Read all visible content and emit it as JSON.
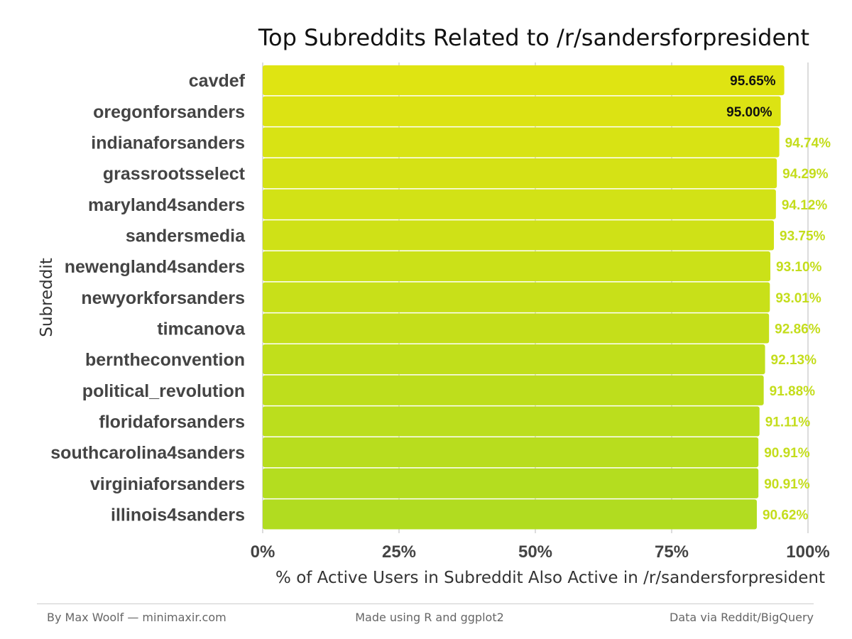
{
  "chart_data": {
    "type": "bar",
    "orientation": "horizontal",
    "title": "Top Subreddits Related to /r/sandersforpresident",
    "xlabel": "% of Active Users in Subreddit Also Active in /r/sandersforpresident",
    "ylabel": "Subreddit",
    "xlim": [
      0,
      100
    ],
    "x_ticks": [
      "0%",
      "25%",
      "50%",
      "75%",
      "100%"
    ],
    "grid": true,
    "categories": [
      "cavdef",
      "oregonforsanders",
      "indianaforsanders",
      "grassrootsselect",
      "maryland4sanders",
      "sandersmedia",
      "newengland4sanders",
      "newyorkforsanders",
      "timcanova",
      "berntheconvention",
      "political_revolution",
      "floridaforsanders",
      "southcarolina4sanders",
      "virginiaforsanders",
      "illinois4sanders"
    ],
    "values": [
      95.65,
      95.0,
      94.74,
      94.29,
      94.12,
      93.75,
      93.1,
      93.01,
      92.86,
      92.13,
      91.88,
      91.11,
      90.91,
      90.91,
      90.62
    ],
    "value_labels": [
      "95.65%",
      "95.00%",
      "94.74%",
      "94.29%",
      "94.12%",
      "93.75%",
      "93.10%",
      "93.01%",
      "92.86%",
      "92.13%",
      "91.88%",
      "91.11%",
      "90.91%",
      "90.91%",
      "90.62%"
    ],
    "colors": {
      "top": "#dfe412",
      "bottom": "#b1dc20",
      "inside_label": "#111111",
      "outside_label": "#c4dd1c"
    }
  },
  "footer": {
    "left": "By Max Woolf — minimaxir.com",
    "center": "Made using R and ggplot2",
    "right": "Data via Reddit/BigQuery"
  }
}
